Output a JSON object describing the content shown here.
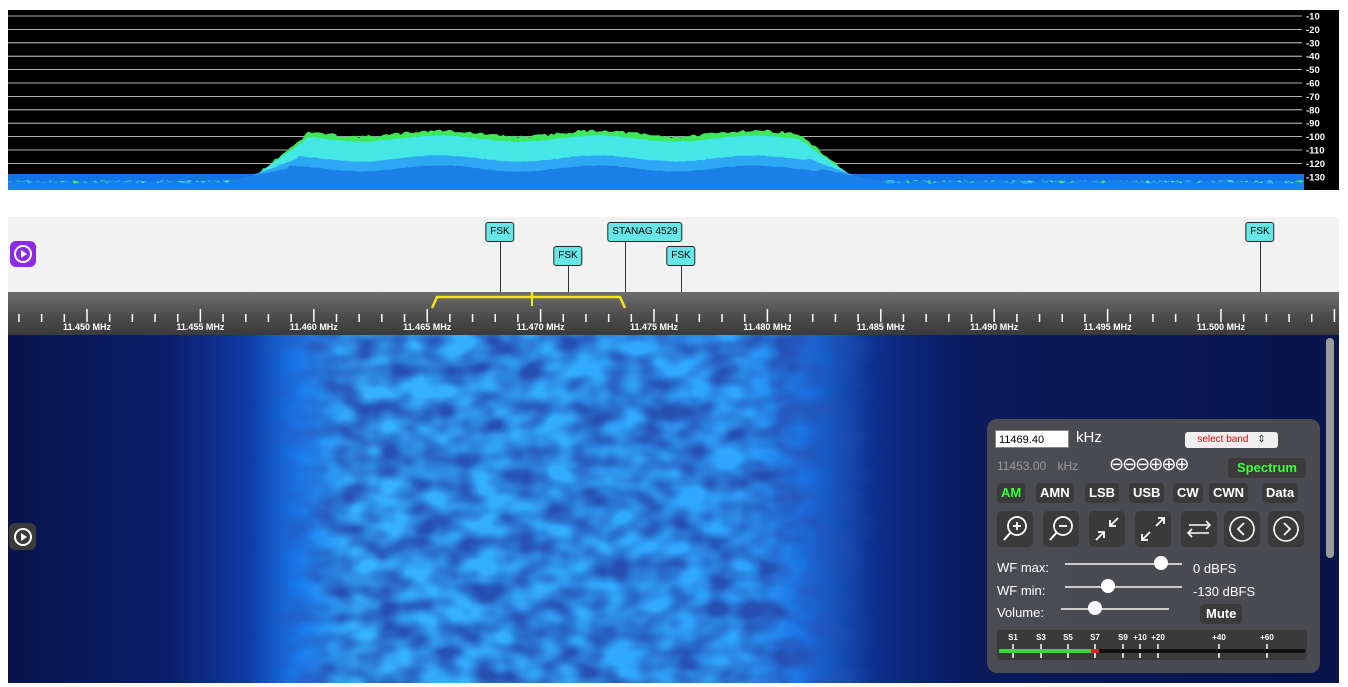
{
  "spectrum": {
    "db_labels": [
      "-10",
      "-20",
      "-30",
      "-40",
      "-50",
      "-60",
      "-70",
      "-80",
      "-90",
      "-100",
      "-110",
      "-120",
      "-130"
    ]
  },
  "dx_labels": [
    {
      "text": "FSK"
    },
    {
      "text": "FSK"
    },
    {
      "text": "STANAG 4529"
    },
    {
      "text": "FSK"
    },
    {
      "text": "FSK"
    }
  ],
  "scale": {
    "labels": [
      "11.450 MHz",
      "11.455 MHz",
      "11.460 MHz",
      "11.465 MHz",
      "11.470 MHz",
      "11.475 MHz",
      "11.480 MHz",
      "11.485 MHz",
      "11.490 MHz",
      "11.495 MHz",
      "11.500 MHz",
      "11.50"
    ]
  },
  "controls": {
    "freq_value": "11469.40",
    "freq_unit": "kHz",
    "band_select": "select band",
    "prev_freq": "11453.00",
    "prev_freq_unit": "kHz",
    "step_symbols": "⊖⊖⊖⊕⊕⊕",
    "spectrum_button": "Spectrum",
    "modes": [
      "AM",
      "AMN",
      "LSB",
      "USB",
      "CW",
      "CWN",
      "Data"
    ],
    "active_mode": "AM",
    "wf_max_label": "WF max:",
    "wf_max_value": "0 dBFS",
    "wf_min_label": "WF min:",
    "wf_min_value": "-130 dBFS",
    "volume_label": "Volume:",
    "mute_button": "Mute",
    "smeter_labels": [
      "S1",
      "S3",
      "S5",
      "S7",
      "S9",
      "+10",
      "+20",
      "+40",
      "+60"
    ]
  },
  "colors": {
    "accent_green": "#39ff3a",
    "tag_cyan": "#66e6e6",
    "passband_yellow": "#f2e51a",
    "play_purple": "#8b2be2"
  }
}
